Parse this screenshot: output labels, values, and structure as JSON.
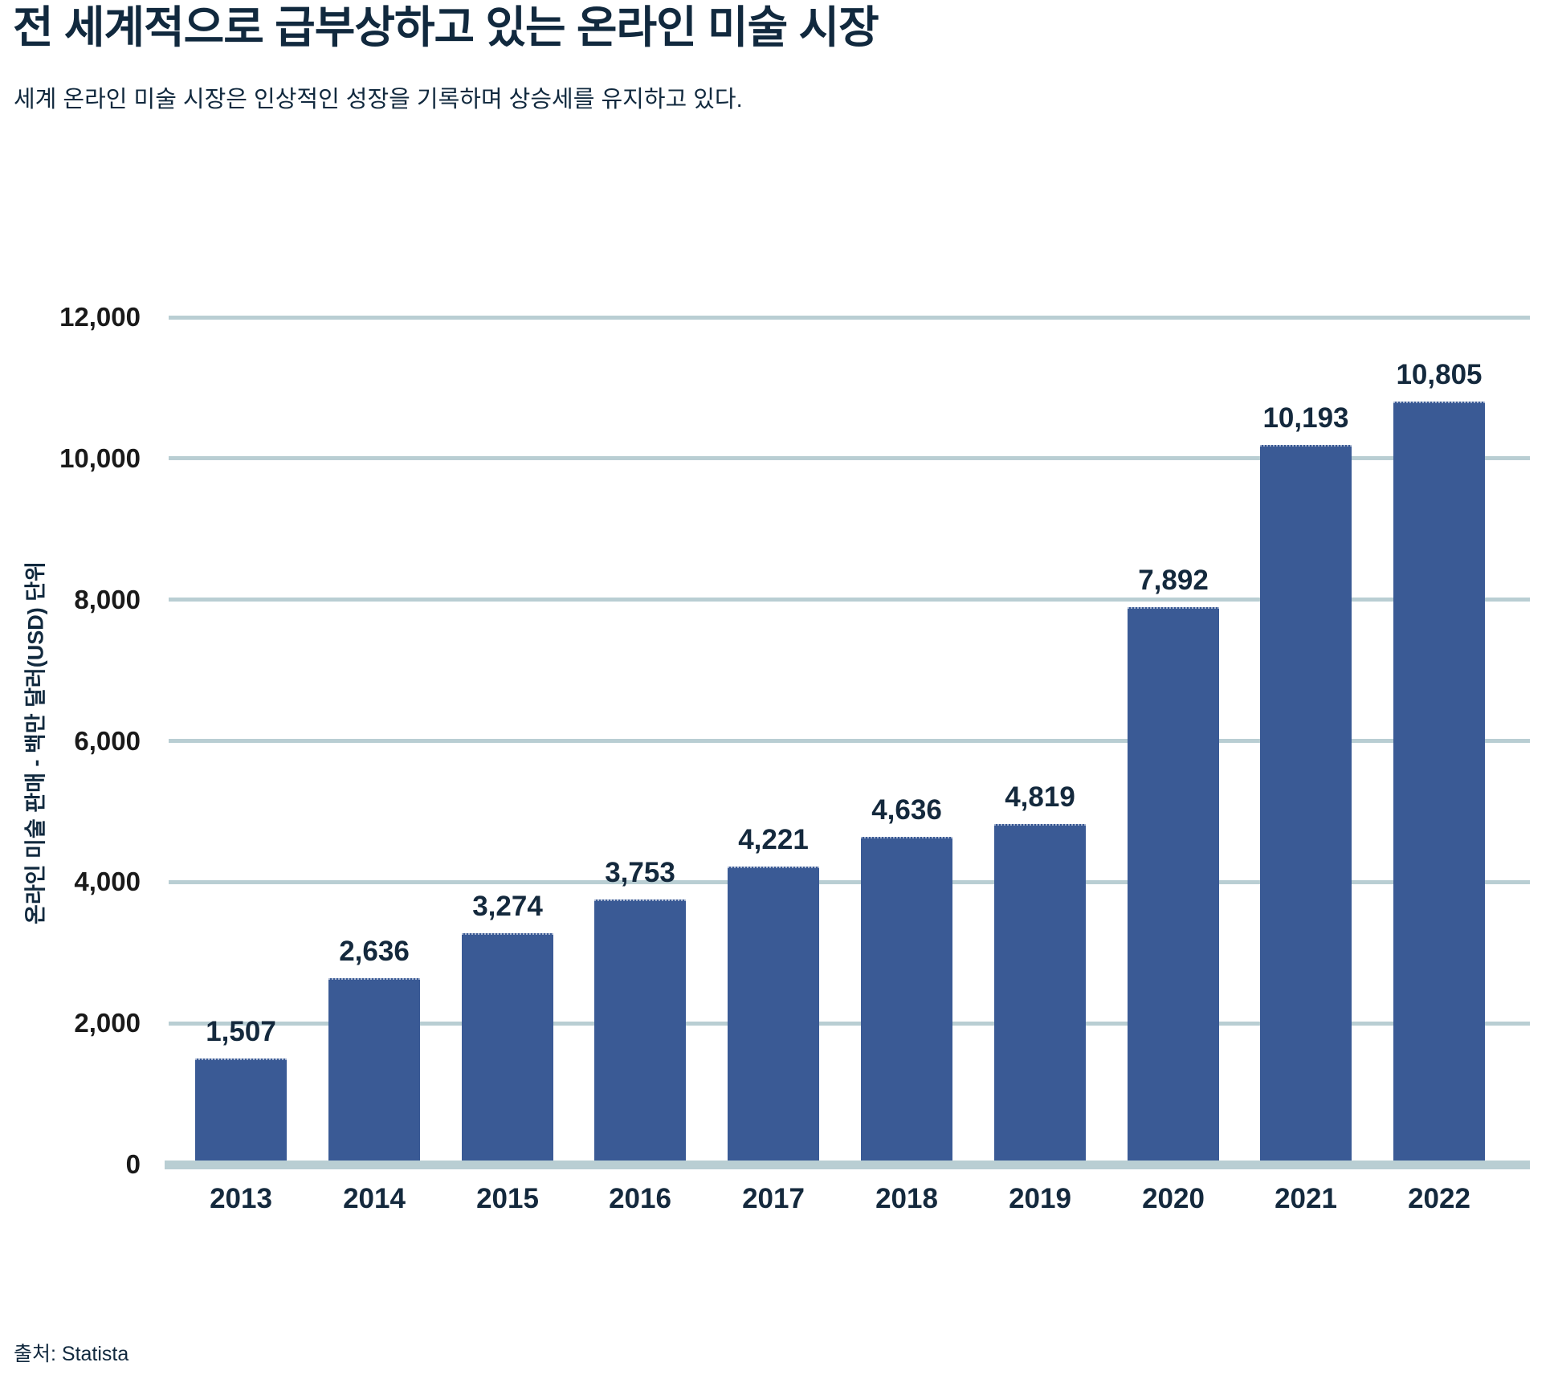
{
  "page": {
    "title": "전 세계적으로 급부상하고 있는 온라인 미술 시장",
    "subtitle": "세계 온라인 미술 시장은 인상적인 성장을 기록하며 상승세를 유지하고 있다.",
    "source": "출처: Statista"
  },
  "colors": {
    "bar": "#3a5a95",
    "grid": "#b9ced3",
    "heading_text": "#11293e",
    "data_label_text": "#14293d",
    "axis_tick_text": "#1a1a1a",
    "background": "#ffffff"
  },
  "chart_data": {
    "type": "bar",
    "title": "전 세계적으로 급부상하고 있는 온라인 미술 시장",
    "subtitle": "세계 온라인 미술 시장은 인상적인 성장을 기록하며 상승세를 유지하고 있다.",
    "categories": [
      "2013",
      "2014",
      "2015",
      "2016",
      "2017",
      "2018",
      "2019",
      "2020",
      "2021",
      "2022"
    ],
    "values": [
      1507,
      2636,
      3274,
      3753,
      4221,
      4636,
      4819,
      7892,
      10193,
      10805
    ],
    "value_labels": [
      "1,507",
      "2,636",
      "3,274",
      "3,753",
      "4,221",
      "4,636",
      "4,819",
      "7,892",
      "10,193",
      "10,805"
    ],
    "xlabel": "",
    "ylabel": "온라인 미술 판매 - 백만 달러(USD) 단위",
    "ylim": [
      0,
      12000
    ],
    "ytick_values": [
      0,
      2000,
      4000,
      6000,
      8000,
      10000,
      12000
    ],
    "ytick_labels": [
      "0",
      "2,000",
      "4,000",
      "6,000",
      "8,000",
      "10,000",
      "12,000"
    ],
    "grid": true,
    "legend": false,
    "data_labels": true,
    "source": "출처: Statista"
  }
}
